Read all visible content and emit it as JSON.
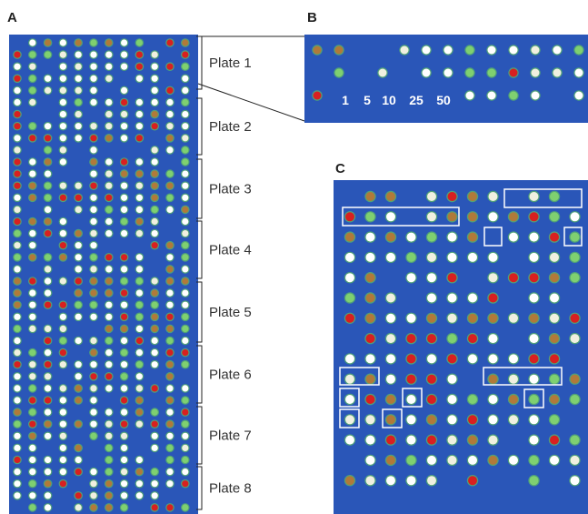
{
  "panels": {
    "a": {
      "label": "A",
      "plates": [
        "Plate 1",
        "Plate 2",
        "Plate 3",
        "Plate 4",
        "Plate 5",
        "Plate 6",
        "Plate 7",
        "Plate 8"
      ]
    },
    "b": {
      "label": "B",
      "concentrations": [
        "1",
        "5",
        "10",
        "25",
        "50"
      ]
    },
    "c": {
      "label": "C"
    }
  }
}
